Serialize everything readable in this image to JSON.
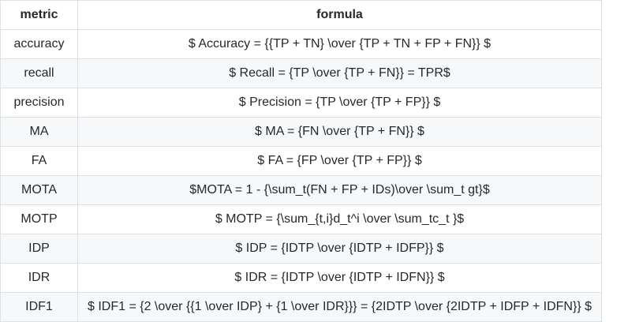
{
  "table": {
    "headers": [
      "metric",
      "formula"
    ],
    "rows": [
      {
        "metric": "accuracy",
        "formula": "$ Accuracy = {{TP + TN} \\over {TP + TN + FP + FN}} $"
      },
      {
        "metric": "recall",
        "formula": "$ Recall = {TP \\over {TP + FN}} = TPR$"
      },
      {
        "metric": "precision",
        "formula": "$ Precision = {TP \\over {TP + FP}} $"
      },
      {
        "metric": "MA",
        "formula": "$ MA = {FN \\over {TP + FN}} $"
      },
      {
        "metric": "FA",
        "formula": "$ FA = {FP \\over {TP + FP}} $"
      },
      {
        "metric": "MOTA",
        "formula": "$MOTA = 1 - {\\sum_t(FN + FP + IDs)\\over \\sum_t gt}$"
      },
      {
        "metric": "MOTP",
        "formula": "$ MOTP = {\\sum_{t,i}d_t^i \\over \\sum_tc_t }$"
      },
      {
        "metric": "IDP",
        "formula": "$ IDP = {IDTP \\over {IDTP + IDFP}} $"
      },
      {
        "metric": "IDR",
        "formula": "$ IDR = {IDTP \\over {IDTP + IDFN}} $"
      },
      {
        "metric": "IDF1",
        "formula": "$ IDF1 = {2 \\over {{1 \\over IDP} + {1 \\over IDR}}} = {2IDTP \\over {2IDTP + IDFP + IDFN}} $"
      }
    ]
  }
}
